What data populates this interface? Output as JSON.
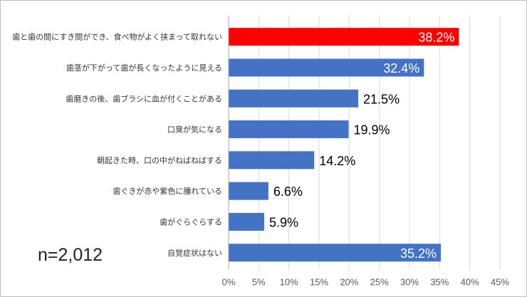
{
  "chart_data": {
    "type": "bar",
    "orientation": "horizontal",
    "categories": [
      "歯と歯の間にすき間ができ、食べ物がよく挟まって取れない",
      "歯茎が下がって歯が長くなったように見える",
      "歯磨きの後、歯ブラシに血が付くことがある",
      "口臭が気になる",
      "朝起きた時、口の中がねばねばする",
      "歯ぐきが赤や紫色に腫れている",
      "歯がぐらぐらする",
      "自覚症状はない"
    ],
    "values": [
      38.2,
      32.4,
      21.5,
      19.9,
      14.2,
      6.6,
      5.9,
      35.2
    ],
    "value_labels": [
      "38.2%",
      "32.4%",
      "21.5%",
      "19.9%",
      "14.2%",
      "6.6%",
      "5.9%",
      "35.2%"
    ],
    "label_inside": [
      true,
      true,
      false,
      false,
      false,
      false,
      false,
      true
    ],
    "bar_colors": [
      "#ff0000",
      "#4472c4",
      "#4472c4",
      "#4472c4",
      "#4472c4",
      "#4472c4",
      "#4472c4",
      "#4472c4"
    ],
    "xlim": [
      0,
      45
    ],
    "x_ticks": [
      0,
      5,
      10,
      15,
      20,
      25,
      30,
      35,
      40,
      45
    ],
    "x_tick_labels": [
      "0%",
      "5%",
      "10%",
      "15%",
      "20%",
      "25%",
      "30%",
      "35%",
      "40%",
      "45%"
    ],
    "grid": true,
    "gridline_color": "#d9d9d9",
    "axis_color": "#a6a6a6"
  },
  "annotation": "n=2,012"
}
